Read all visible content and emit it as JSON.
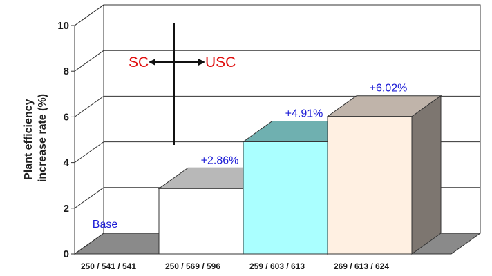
{
  "chart_data": {
    "type": "bar",
    "categories": [
      "250 / 541 / 541",
      "250 / 569 / 596",
      "259 / 603 / 613",
      "269 / 613 / 624"
    ],
    "values": [
      0,
      2.86,
      4.91,
      6.02
    ],
    "data_labels": [
      "Base",
      "+2.86%",
      "+4.91%",
      "+6.02%"
    ],
    "ylabel_lines": [
      "Plant efficiency",
      "increase rate (%)"
    ],
    "yticks": [
      0,
      2,
      4,
      6,
      8,
      10
    ],
    "ylim": [
      0,
      10
    ],
    "grid": true,
    "bar_colors": [
      "#ffffff",
      "#ffffff",
      "#aaffff",
      "#fff0e2"
    ],
    "top_colors": [
      "#a0a0a0",
      "#b8b8b8",
      "#6fb0b0",
      "#c0b4aa"
    ],
    "side_colors": [
      "#8a8a8a",
      "#9a9a9a",
      "#5f9999",
      "#7d7670"
    ],
    "annotation": {
      "left": "SC",
      "right": "USC",
      "color": "#e01010"
    }
  }
}
